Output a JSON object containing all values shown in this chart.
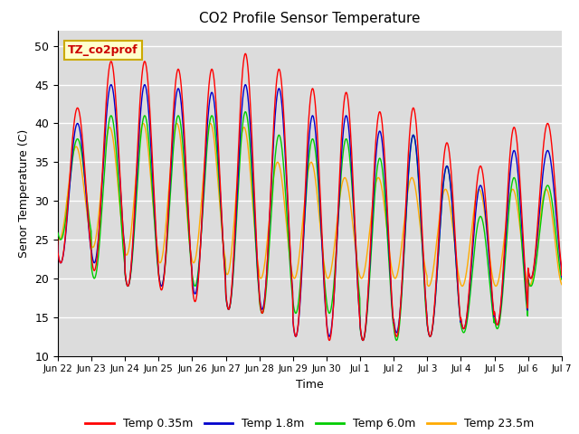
{
  "title": "CO2 Profile Sensor Temperature",
  "xlabel": "Time",
  "ylabel": "Senor Temperature (C)",
  "ylim": [
    10,
    52
  ],
  "yticks": [
    10,
    15,
    20,
    25,
    30,
    35,
    40,
    45,
    50
  ],
  "xlim_start": 24,
  "xlim_end": 384,
  "bg_color": "#dcdcdc",
  "colors": {
    "0.35m": "#ff0000",
    "1.8m": "#0000cc",
    "6.0m": "#00cc00",
    "23.5m": "#ffaa00"
  },
  "legend_labels": [
    "Temp 0.35m",
    "Temp 1.8m",
    "Temp 6.0m",
    "Temp 23.5m"
  ],
  "annotation_text": "TZ_co2prof",
  "annotation_bg": "#ffffcc",
  "annotation_border": "#ccaa00",
  "tick_positions": [
    24,
    48,
    72,
    96,
    120,
    144,
    168,
    192,
    216,
    240,
    264,
    288,
    312,
    336,
    360,
    384
  ],
  "tick_labels": [
    "Jun 22",
    "Jun 23",
    "Jun 24",
    "Jun 25",
    "Jun 26",
    "Jun 27",
    "Jun 28",
    "Jun 29",
    "Jun 30",
    "Jul 1",
    "Jul 2",
    "Jul 3",
    "Jul 4",
    "Jul 5",
    "Jul 6",
    "Jul 7"
  ]
}
